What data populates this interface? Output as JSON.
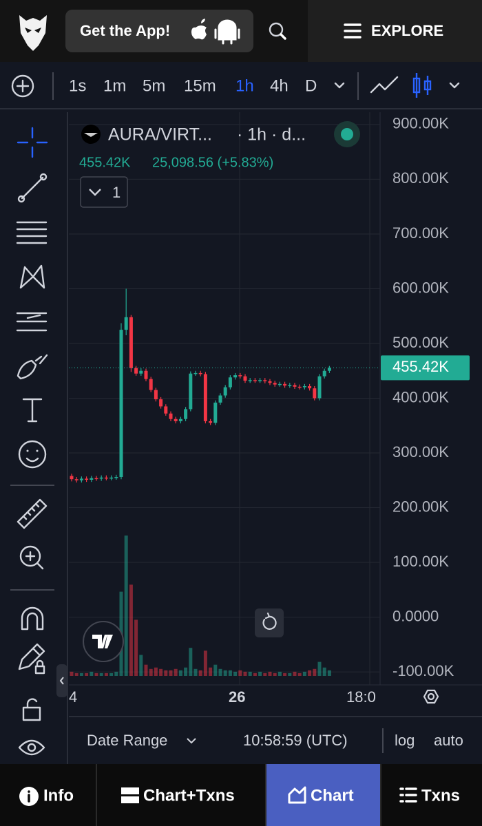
{
  "header": {
    "get_app": "Get the App!",
    "explore": "EXPLORE"
  },
  "timeframes": {
    "items": [
      "1s",
      "1m",
      "5m",
      "15m",
      "1h",
      "4h",
      "D"
    ],
    "active": 4
  },
  "legend": {
    "symbol": "AURA/VIRT...",
    "interval": "· 1h · d...",
    "price": "455.42K",
    "change": "25,098.56 (+5.83%)",
    "indicators": "1"
  },
  "chart_data": {
    "type": "candlestick",
    "open": [
      258000,
      252000,
      250000,
      253000,
      251000,
      254000,
      253000,
      255000,
      254000,
      255000,
      256000,
      525000,
      548000,
      455000,
      445000,
      450000,
      435000,
      415000,
      398000,
      385000,
      372000,
      362000,
      358000,
      362000,
      380000,
      445000,
      446000,
      444000,
      358000,
      355000,
      392000,
      405000,
      420000,
      438000,
      442000,
      440000,
      432000,
      433000,
      432000,
      433000,
      431000,
      428000,
      425000,
      426000,
      423000,
      424000,
      421000,
      420000,
      422000,
      418000,
      400000,
      440000,
      450000
    ],
    "high": [
      262000,
      256000,
      257000,
      257000,
      258000,
      258000,
      259000,
      259000,
      259000,
      260000,
      537000,
      600000,
      552000,
      459000,
      455000,
      454000,
      439000,
      419000,
      402000,
      389000,
      376000,
      366000,
      366000,
      384000,
      449000,
      450000,
      450000,
      448000,
      362000,
      396000,
      409000,
      424000,
      442000,
      446000,
      446000,
      444000,
      437000,
      437000,
      437000,
      437000,
      435000,
      432000,
      430000,
      430000,
      428000,
      428000,
      425000,
      426000,
      426000,
      422000,
      444000,
      454000,
      459000
    ],
    "low": [
      248000,
      246000,
      246000,
      247000,
      247000,
      249000,
      249000,
      250000,
      250000,
      251000,
      252000,
      515000,
      448000,
      441000,
      441000,
      431000,
      411000,
      394000,
      381000,
      368000,
      358000,
      354000,
      354000,
      358000,
      376000,
      441000,
      440000,
      354000,
      351000,
      351000,
      388000,
      401000,
      416000,
      434000,
      436000,
      428000,
      428000,
      428000,
      428000,
      427000,
      424000,
      421000,
      421000,
      419000,
      419000,
      417000,
      416000,
      416000,
      414000,
      396000,
      396000,
      436000,
      446000
    ],
    "close": [
      252000,
      250000,
      253000,
      251000,
      254000,
      253000,
      255000,
      254000,
      255000,
      256000,
      525000,
      548000,
      455000,
      445000,
      450000,
      435000,
      415000,
      398000,
      385000,
      372000,
      362000,
      358000,
      362000,
      380000,
      445000,
      446000,
      444000,
      358000,
      355000,
      392000,
      405000,
      420000,
      438000,
      442000,
      440000,
      432000,
      433000,
      432000,
      433000,
      431000,
      428000,
      425000,
      426000,
      423000,
      424000,
      421000,
      420000,
      422000,
      418000,
      400000,
      440000,
      450000,
      455420
    ],
    "volume": [
      3,
      2,
      2,
      2,
      3,
      2,
      2,
      2,
      2,
      3,
      60,
      100,
      65,
      40,
      15,
      8,
      5,
      6,
      5,
      4,
      4,
      5,
      4,
      6,
      20,
      5,
      4,
      18,
      6,
      8,
      5,
      4,
      4,
      3,
      4,
      3,
      3,
      2,
      3,
      2,
      3,
      2,
      3,
      2,
      2,
      3,
      2,
      3,
      4,
      5,
      10,
      6,
      4
    ],
    "up_color": "#22ab94",
    "down_color": "#f23645",
    "ylim": [
      -120000,
      920000
    ],
    "yticks": [
      {
        "value": 900000,
        "label": "900.00K"
      },
      {
        "value": 800000,
        "label": "800.00K"
      },
      {
        "value": 700000,
        "label": "700.00K"
      },
      {
        "value": 600000,
        "label": "600.00K"
      },
      {
        "value": 500000,
        "label": "500.00K"
      },
      {
        "value": 400000,
        "label": "400.00K"
      },
      {
        "value": 300000,
        "label": "300.00K"
      },
      {
        "value": 200000,
        "label": "200.00K"
      },
      {
        "value": 100000,
        "label": "100.00K"
      },
      {
        "value": 0,
        "label": "0.0000"
      },
      {
        "value": -100000,
        "label": "-100.00K"
      }
    ],
    "y2lim": [
      0,
      100
    ],
    "last_price": {
      "value": 455420,
      "label": "455.42K"
    },
    "x_labels": [
      "4",
      "26",
      "18:0"
    ],
    "grid": true
  },
  "footer": {
    "date_range": "Date Range",
    "time": "10:58:59 (UTC)",
    "log": "log",
    "auto": "auto"
  },
  "nav": {
    "items": [
      "Info",
      "Chart+Txns",
      "Chart",
      "Txns"
    ],
    "active": 2
  }
}
